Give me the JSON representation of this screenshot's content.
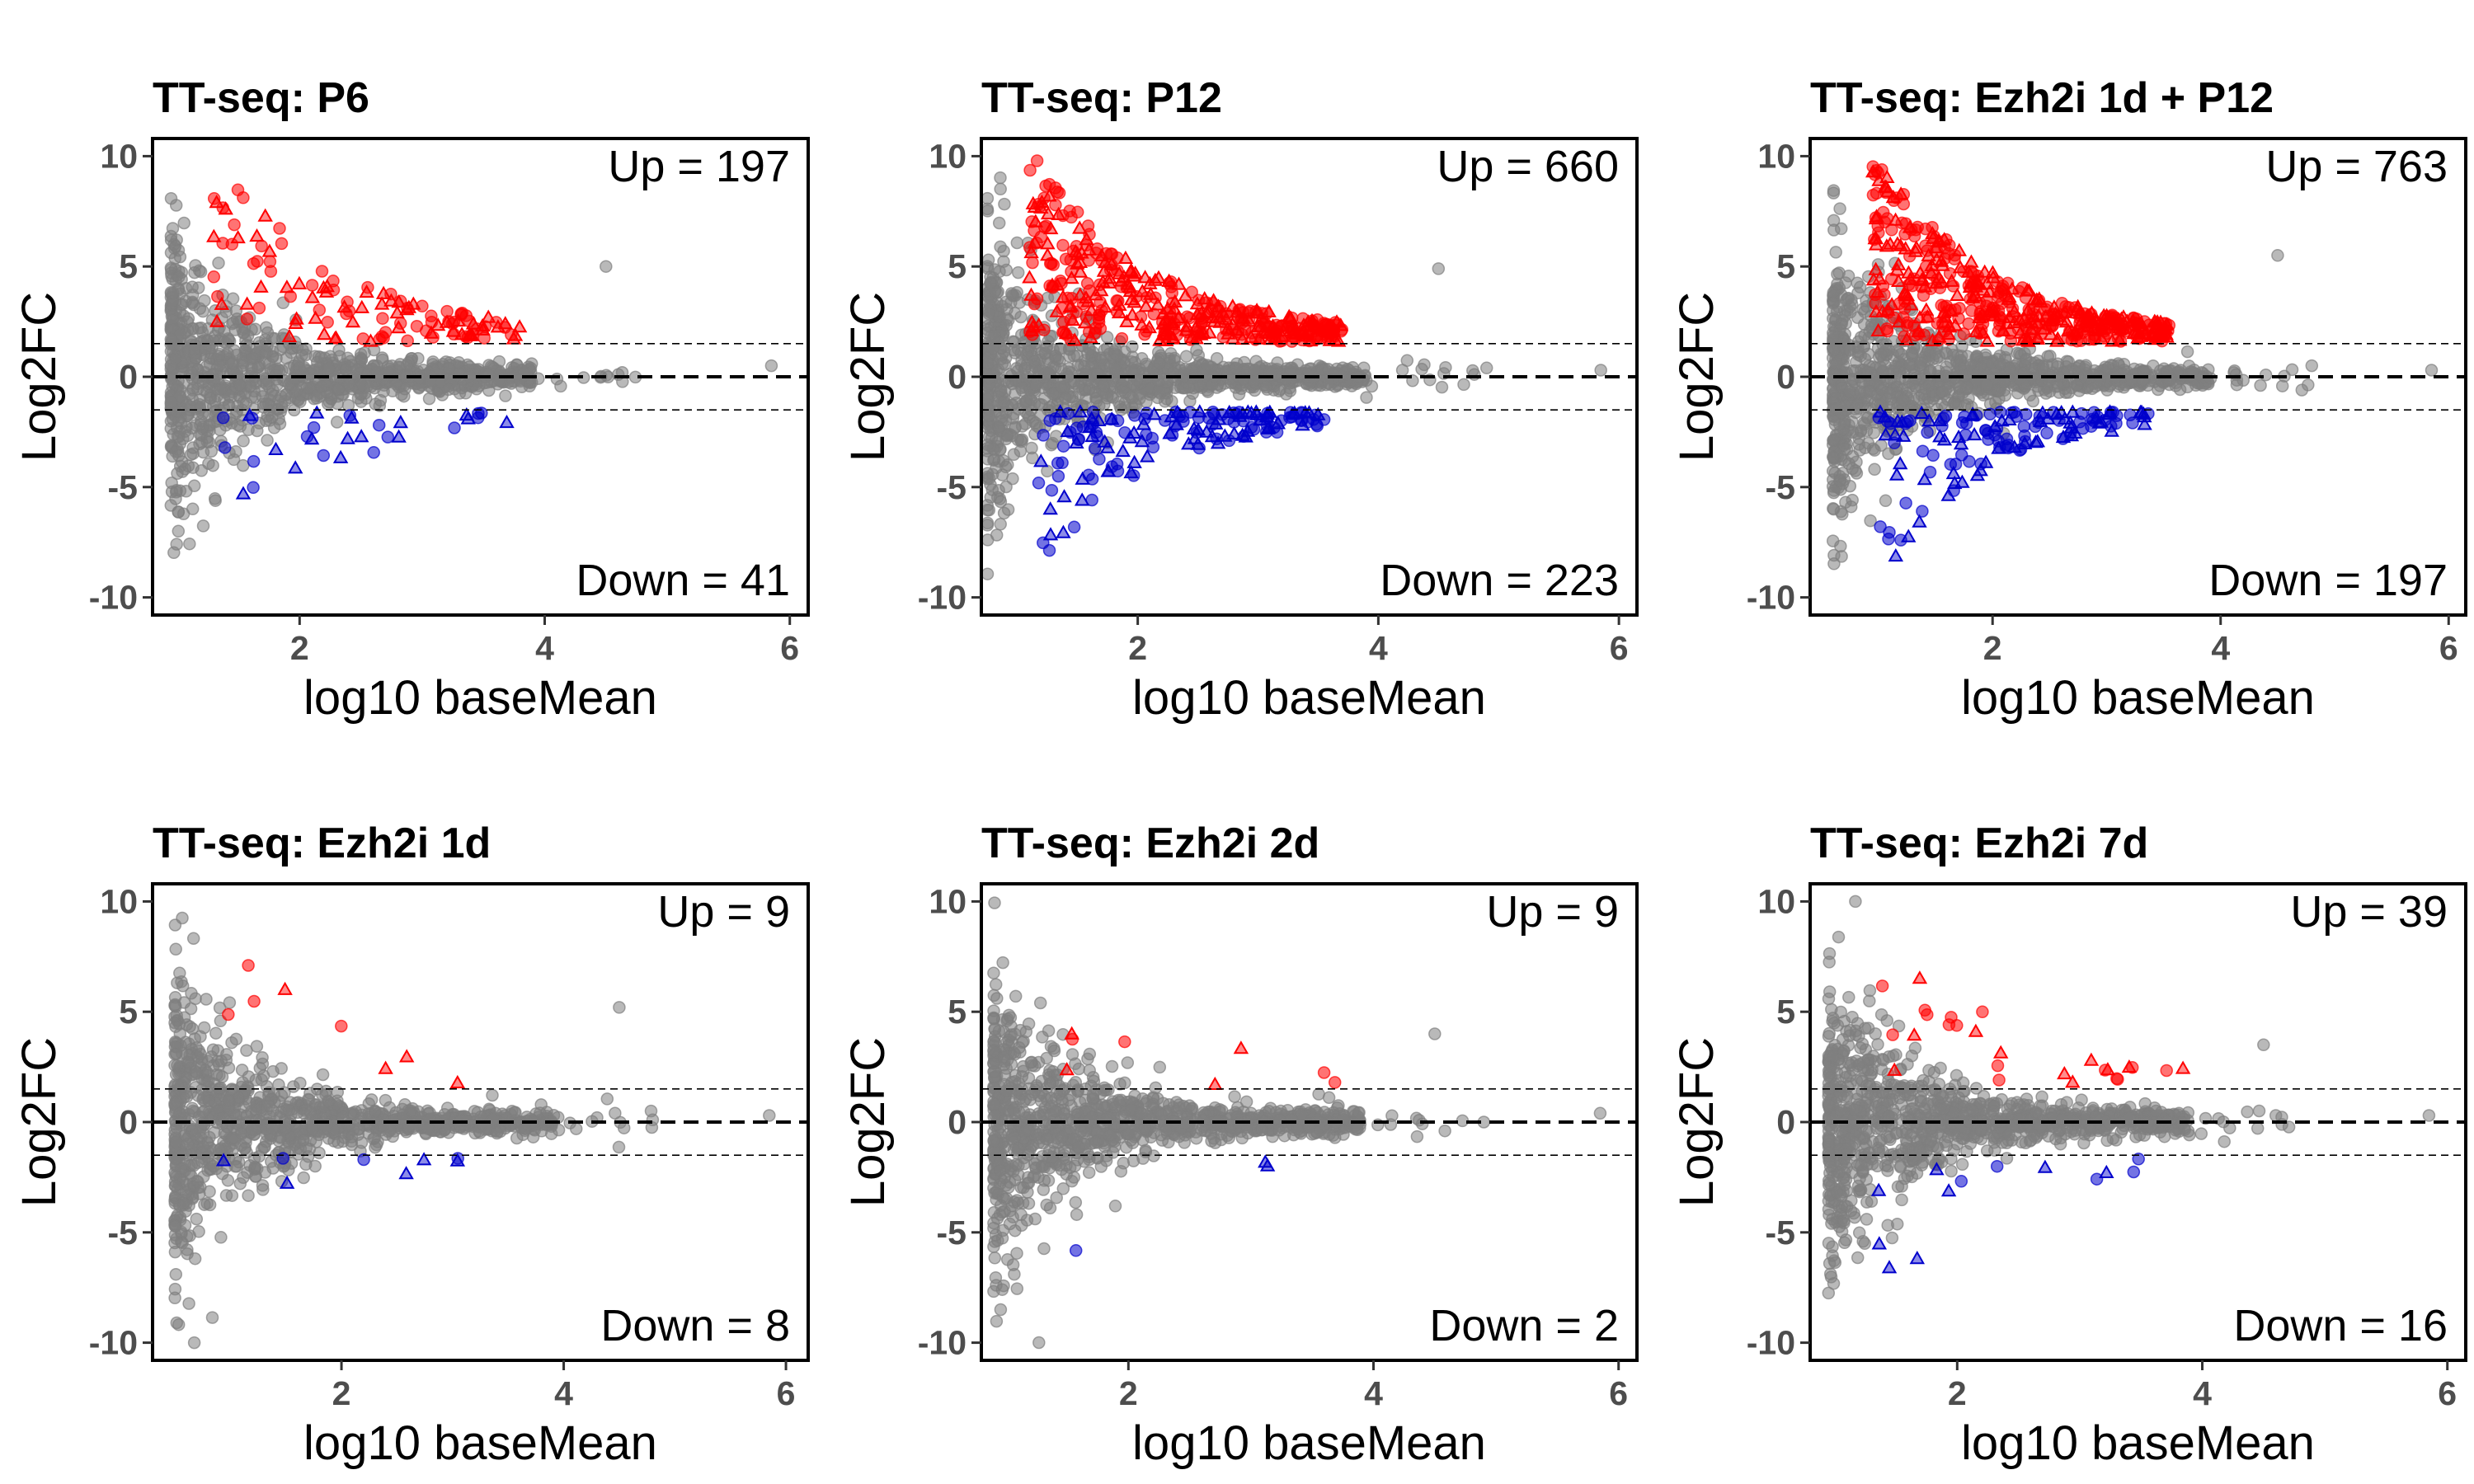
{
  "chart_data": [
    {
      "type": "scatter",
      "title": "TT-seq: P6",
      "xlabel": "log10 baseMean",
      "ylabel": "Log2FC",
      "xlim": [
        0.8,
        6.15
      ],
      "ylim": [
        -10.8,
        10.8
      ],
      "xticks": [
        "2",
        "4",
        "6"
      ],
      "yticks": [
        "10",
        "5",
        "0",
        "-5",
        "-10"
      ],
      "hlines": [
        1.5,
        0,
        -1.5
      ],
      "up_label": "Up = 197",
      "down_label": "Down = 41",
      "up_count": 197,
      "down_count": 41,
      "min_x": 0.95,
      "outliers": [
        [
          4.5,
          5.0
        ],
        [
          5.85,
          0.5
        ],
        [
          4.1,
          -0.1
        ],
        [
          4.6,
          0.1
        ]
      ]
    },
    {
      "type": "scatter",
      "title": "TT-seq: P12",
      "xlabel": "log10 baseMean",
      "ylabel": "Log2FC",
      "xlim": [
        0.7,
        6.15
      ],
      "ylim": [
        -10.8,
        10.8
      ],
      "xticks": [
        "2",
        "4",
        "6"
      ],
      "yticks": [
        "10",
        "5",
        "0",
        "-5",
        "-10"
      ],
      "hlines": [
        1.5,
        0,
        -1.5
      ],
      "up_label": "Up = 660",
      "down_label": "Down = 223",
      "up_count": 660,
      "down_count": 223,
      "min_x": 0.75,
      "outliers": [
        [
          4.5,
          4.9
        ],
        [
          4.2,
          0.3
        ],
        [
          4.9,
          0.4
        ],
        [
          5.85,
          0.3
        ]
      ]
    },
    {
      "type": "scatter",
      "title": "TT-seq: Ezh2i 1d + P12",
      "xlabel": "log10 baseMean",
      "ylabel": "Log2FC",
      "xlim": [
        0.4,
        6.15
      ],
      "ylim": [
        -10.8,
        10.8
      ],
      "xticks": [
        "2",
        "4",
        "6"
      ],
      "yticks": [
        "10",
        "5",
        "0",
        "-5",
        "-10"
      ],
      "hlines": [
        1.5,
        0,
        -1.5
      ],
      "up_label": "Up = 763",
      "down_label": "Down = 197",
      "up_count": 763,
      "down_count": 197,
      "min_x": 0.6,
      "outliers": [
        [
          4.5,
          5.5
        ],
        [
          4.8,
          0.5
        ],
        [
          5.85,
          0.3
        ]
      ]
    },
    {
      "type": "scatter",
      "title": "TT-seq: Ezh2i 1d",
      "xlabel": "log10 baseMean",
      "ylabel": "Log2FC",
      "xlim": [
        0.3,
        6.2
      ],
      "ylim": [
        -10.8,
        10.8
      ],
      "xticks": [
        "2",
        "4",
        "6"
      ],
      "yticks": [
        "10",
        "5",
        "0",
        "-5",
        "-10"
      ],
      "hlines": [
        1.5,
        0,
        -1.5
      ],
      "up_label": "Up = 9",
      "down_label": "Down = 8",
      "up_count": 9,
      "down_count": 8,
      "min_x": 0.5,
      "outliers": [
        [
          4.5,
          5.2
        ],
        [
          4.3,
          0.2
        ],
        [
          4.8,
          0.1
        ],
        [
          5.85,
          0.3
        ]
      ]
    },
    {
      "type": "scatter",
      "title": "TT-seq: Ezh2i 2d",
      "xlabel": "log10 baseMean",
      "ylabel": "Log2FC",
      "xlim": [
        0.8,
        6.15
      ],
      "ylim": [
        -10.8,
        10.8
      ],
      "xticks": [
        "2",
        "4",
        "6"
      ],
      "yticks": [
        "10",
        "5",
        "0",
        "-5",
        "-10"
      ],
      "hlines": [
        1.5,
        0,
        -1.5
      ],
      "up_label": "Up = 9",
      "down_label": "Down = 2",
      "up_count": 9,
      "down_count": 2,
      "min_x": 0.9,
      "outliers": [
        [
          4.5,
          4.0
        ],
        [
          4.9,
          0.0
        ],
        [
          5.85,
          0.4
        ]
      ]
    },
    {
      "type": "scatter",
      "title": "TT-seq: Ezh2i 7d",
      "xlabel": "log10 baseMean",
      "ylabel": "Log2FC",
      "xlim": [
        0.8,
        6.15
      ],
      "ylim": [
        -10.8,
        10.8
      ],
      "xticks": [
        "2",
        "4",
        "6"
      ],
      "yticks": [
        "10",
        "5",
        "0",
        "-5",
        "-10"
      ],
      "hlines": [
        1.5,
        0,
        -1.5
      ],
      "up_label": "Up = 39",
      "down_label": "Down = 16",
      "up_count": 39,
      "down_count": 16,
      "min_x": 0.95,
      "outliers": [
        [
          4.5,
          3.5
        ],
        [
          4.6,
          0.3
        ],
        [
          5.85,
          0.3
        ]
      ]
    }
  ],
  "colors": {
    "background": "#ffffff",
    "ns_point": "#7f7f7f",
    "up_point": "#ff0000",
    "down_point": "#0000cc",
    "axis": "#000000",
    "tick_text": "#4d4d4d"
  }
}
